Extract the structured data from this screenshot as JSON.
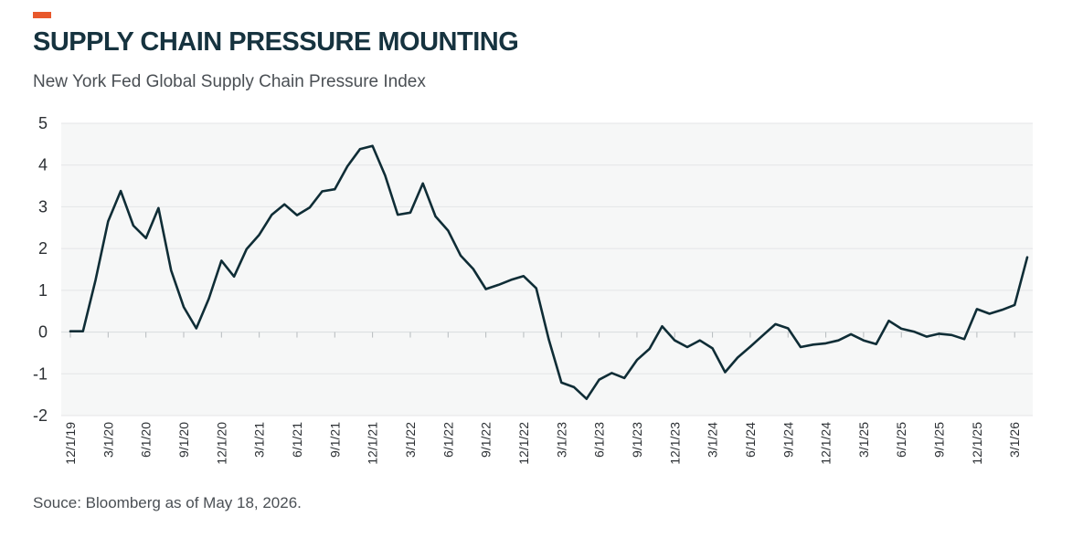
{
  "colors": {
    "accent": "#e8582c",
    "title": "#16333f",
    "line": "#0f2d36",
    "plot_background": "#f6f7f7",
    "gridline": "#ffffff"
  },
  "source": "Souce: Bloomberg as of May 18, 2026.",
  "chart_data": {
    "type": "line",
    "title": "SUPPLY CHAIN PRESSURE MOUNTING",
    "subtitle": "New York Fed Global Supply Chain Pressure Index",
    "xlabel": "",
    "ylabel": "",
    "ylim": [
      -2,
      5
    ],
    "yticks": [
      5,
      4,
      3,
      2,
      1,
      0,
      -1,
      -2
    ],
    "grid": true,
    "legend": "none",
    "x": [
      "12/1/19",
      "1/1/20",
      "2/1/20",
      "3/1/20",
      "4/1/20",
      "5/1/20",
      "6/1/20",
      "7/1/20",
      "8/1/20",
      "9/1/20",
      "10/1/20",
      "11/1/20",
      "12/1/20",
      "1/1/21",
      "2/1/21",
      "3/1/21",
      "4/1/21",
      "5/1/21",
      "6/1/21",
      "7/1/21",
      "8/1/21",
      "9/1/21",
      "10/1/21",
      "11/1/21",
      "12/1/21",
      "1/1/22",
      "2/1/22",
      "3/1/22",
      "4/1/22",
      "5/1/22",
      "6/1/22",
      "7/1/22",
      "8/1/22",
      "9/1/22",
      "10/1/22",
      "11/1/22",
      "12/1/22",
      "1/1/23",
      "2/1/23",
      "3/1/23",
      "4/1/23",
      "5/1/23",
      "6/1/23",
      "7/1/23",
      "8/1/23",
      "9/1/23",
      "10/1/23",
      "11/1/23",
      "12/1/23",
      "1/1/24",
      "2/1/24",
      "3/1/24",
      "4/1/24",
      "5/1/24",
      "6/1/24",
      "7/1/24",
      "8/1/24",
      "9/1/24",
      "10/1/24",
      "11/1/24",
      "12/1/24",
      "1/1/25",
      "2/1/25",
      "3/1/25",
      "4/1/25",
      "5/1/25",
      "6/1/25",
      "7/1/25",
      "8/1/25",
      "9/1/25",
      "10/1/25",
      "11/1/25",
      "12/1/25",
      "1/1/26",
      "2/1/26",
      "3/1/26",
      "4/1/26"
    ],
    "xtick_labels": [
      "12/1/19",
      "3/1/20",
      "6/1/20",
      "9/1/20",
      "12/1/20",
      "3/1/21",
      "6/1/21",
      "9/1/21",
      "12/1/21",
      "3/1/22",
      "6/1/22",
      "9/1/22",
      "12/1/22",
      "3/1/23",
      "6/1/23",
      "9/1/23",
      "12/1/23",
      "3/1/24",
      "6/1/24",
      "9/1/24",
      "12/1/24",
      "3/1/25",
      "6/1/25",
      "9/1/25",
      "12/1/25",
      "3/1/26"
    ],
    "series": [
      {
        "values": [
          0.02,
          0.02,
          1.25,
          2.65,
          3.38,
          2.55,
          2.25,
          2.97,
          1.48,
          0.6,
          0.09,
          0.8,
          1.71,
          1.33,
          1.99,
          2.33,
          2.81,
          3.06,
          2.8,
          2.98,
          3.37,
          3.42,
          3.97,
          4.38,
          4.46,
          3.75,
          2.81,
          2.86,
          3.56,
          2.77,
          2.43,
          1.83,
          1.51,
          1.03,
          1.13,
          1.25,
          1.34,
          1.05,
          -0.18,
          -1.21,
          -1.32,
          -1.6,
          -1.14,
          -0.98,
          -1.1,
          -0.67,
          -0.4,
          0.14,
          -0.2,
          -0.36,
          -0.2,
          -0.39,
          -0.96,
          -0.61,
          -0.35,
          -0.08,
          0.19,
          0.09,
          -0.36,
          -0.3,
          -0.27,
          -0.2,
          -0.05,
          -0.2,
          -0.29,
          0.27,
          0.08,
          0.01,
          -0.11,
          -0.04,
          -0.07,
          -0.17,
          0.55,
          0.44,
          0.53,
          0.65,
          1.79
        ]
      }
    ]
  }
}
